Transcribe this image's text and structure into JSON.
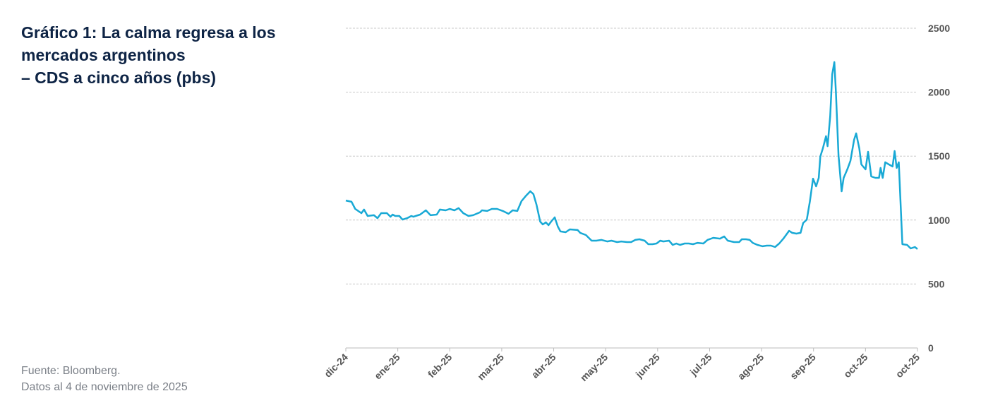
{
  "chart_data": {
    "type": "line",
    "title": [
      "Gráfico 1: La calma regresa a los",
      "mercados argentinos",
      "– CDS a cinco años (pbs)"
    ],
    "source": "Fuente: Bloomberg.",
    "note": "Datos al 4 de noviembre de 2025",
    "xlim": [
      0,
      11
    ],
    "xticks": [
      {
        "value": 0,
        "label": "dic-24"
      },
      {
        "value": 1,
        "label": "ene-25"
      },
      {
        "value": 2,
        "label": "feb-25"
      },
      {
        "value": 3,
        "label": "mar-25"
      },
      {
        "value": 4,
        "label": "abr-25"
      },
      {
        "value": 5,
        "label": "may-25"
      },
      {
        "value": 6,
        "label": "jun-25"
      },
      {
        "value": 7,
        "label": "jul-25"
      },
      {
        "value": 8,
        "label": "ago-25"
      },
      {
        "value": 9,
        "label": "sep-25"
      },
      {
        "value": 10,
        "label": "oct-25"
      },
      {
        "value": 11,
        "label": "oct-25"
      }
    ],
    "ylim": [
      0,
      2500
    ],
    "yticks": [
      0,
      500,
      1000,
      1500,
      2000,
      2500
    ],
    "grid": true,
    "x": [
      0,
      0.11,
      0.18,
      0.3,
      0.35,
      0.42,
      0.54,
      0.61,
      0.68,
      0.79,
      0.86,
      0.9,
      0.95,
      1.03,
      1.09,
      1.18,
      1.26,
      1.3,
      1.43,
      1.54,
      1.63,
      1.75,
      1.81,
      1.92,
      2.0,
      2.09,
      2.17,
      2.26,
      2.36,
      2.45,
      2.58,
      2.62,
      2.72,
      2.81,
      2.91,
      3.02,
      3.13,
      3.21,
      3.3,
      3.38,
      3.46,
      3.55,
      3.61,
      3.67,
      3.74,
      3.79,
      3.85,
      3.9,
      3.95,
      4.02,
      4.08,
      4.13,
      4.23,
      4.31,
      4.46,
      4.51,
      4.62,
      4.73,
      4.82,
      4.92,
      5.03,
      5.11,
      5.22,
      5.3,
      5.41,
      5.49,
      5.57,
      5.65,
      5.75,
      5.82,
      5.9,
      5.98,
      6.05,
      6.11,
      6.22,
      6.29,
      6.36,
      6.43,
      6.52,
      6.6,
      6.68,
      6.77,
      6.88,
      6.96,
      7.07,
      7.2,
      7.28,
      7.35,
      7.47,
      7.57,
      7.62,
      7.7,
      7.77,
      7.83,
      7.92,
      8.02,
      8.1,
      8.18,
      8.26,
      8.34,
      8.42,
      8.53,
      8.59,
      8.67,
      8.75,
      8.8,
      8.87,
      8.93,
      8.99,
      9.05,
      9.1,
      9.13,
      9.18,
      9.24,
      9.27,
      9.32,
      9.36,
      9.4,
      9.43,
      9.48,
      9.54,
      9.58,
      9.65,
      9.71,
      9.78,
      9.82,
      9.88,
      9.92,
      10.0,
      10.05,
      10.11,
      10.19,
      10.26,
      10.29,
      10.33,
      10.38,
      10.45,
      10.52,
      10.56,
      10.6,
      10.64,
      10.71,
      10.8,
      10.87,
      10.95,
      11
    ],
    "series": [
      {
        "color": "#19a9d5",
        "values": [
          1153,
          1143,
          1087,
          1054,
          1082,
          1032,
          1038,
          1015,
          1054,
          1054,
          1026,
          1043,
          1032,
          1032,
          1004,
          1015,
          1032,
          1026,
          1043,
          1076,
          1038,
          1043,
          1082,
          1076,
          1087,
          1076,
          1093,
          1054,
          1032,
          1038,
          1060,
          1076,
          1071,
          1087,
          1087,
          1071,
          1049,
          1076,
          1071,
          1148,
          1187,
          1225,
          1203,
          1120,
          988,
          966,
          982,
          960,
          988,
          1021,
          949,
          911,
          905,
          927,
          922,
          900,
          883,
          839,
          839,
          845,
          833,
          839,
          828,
          833,
          828,
          828,
          845,
          850,
          839,
          811,
          811,
          817,
          839,
          833,
          839,
          806,
          817,
          806,
          817,
          817,
          811,
          822,
          817,
          845,
          861,
          855,
          872,
          839,
          828,
          828,
          850,
          850,
          845,
          822,
          806,
          795,
          800,
          800,
          789,
          817,
          855,
          916,
          900,
          894,
          900,
          977,
          1004,
          1148,
          1324,
          1264,
          1330,
          1496,
          1562,
          1656,
          1578,
          1810,
          2141,
          2235,
          2003,
          1507,
          1225,
          1330,
          1397,
          1463,
          1628,
          1678,
          1562,
          1435,
          1397,
          1534,
          1341,
          1330,
          1330,
          1408,
          1330,
          1452,
          1435,
          1419,
          1540,
          1408,
          1452,
          811,
          806,
          778,
          789,
          773
        ]
      }
    ]
  }
}
